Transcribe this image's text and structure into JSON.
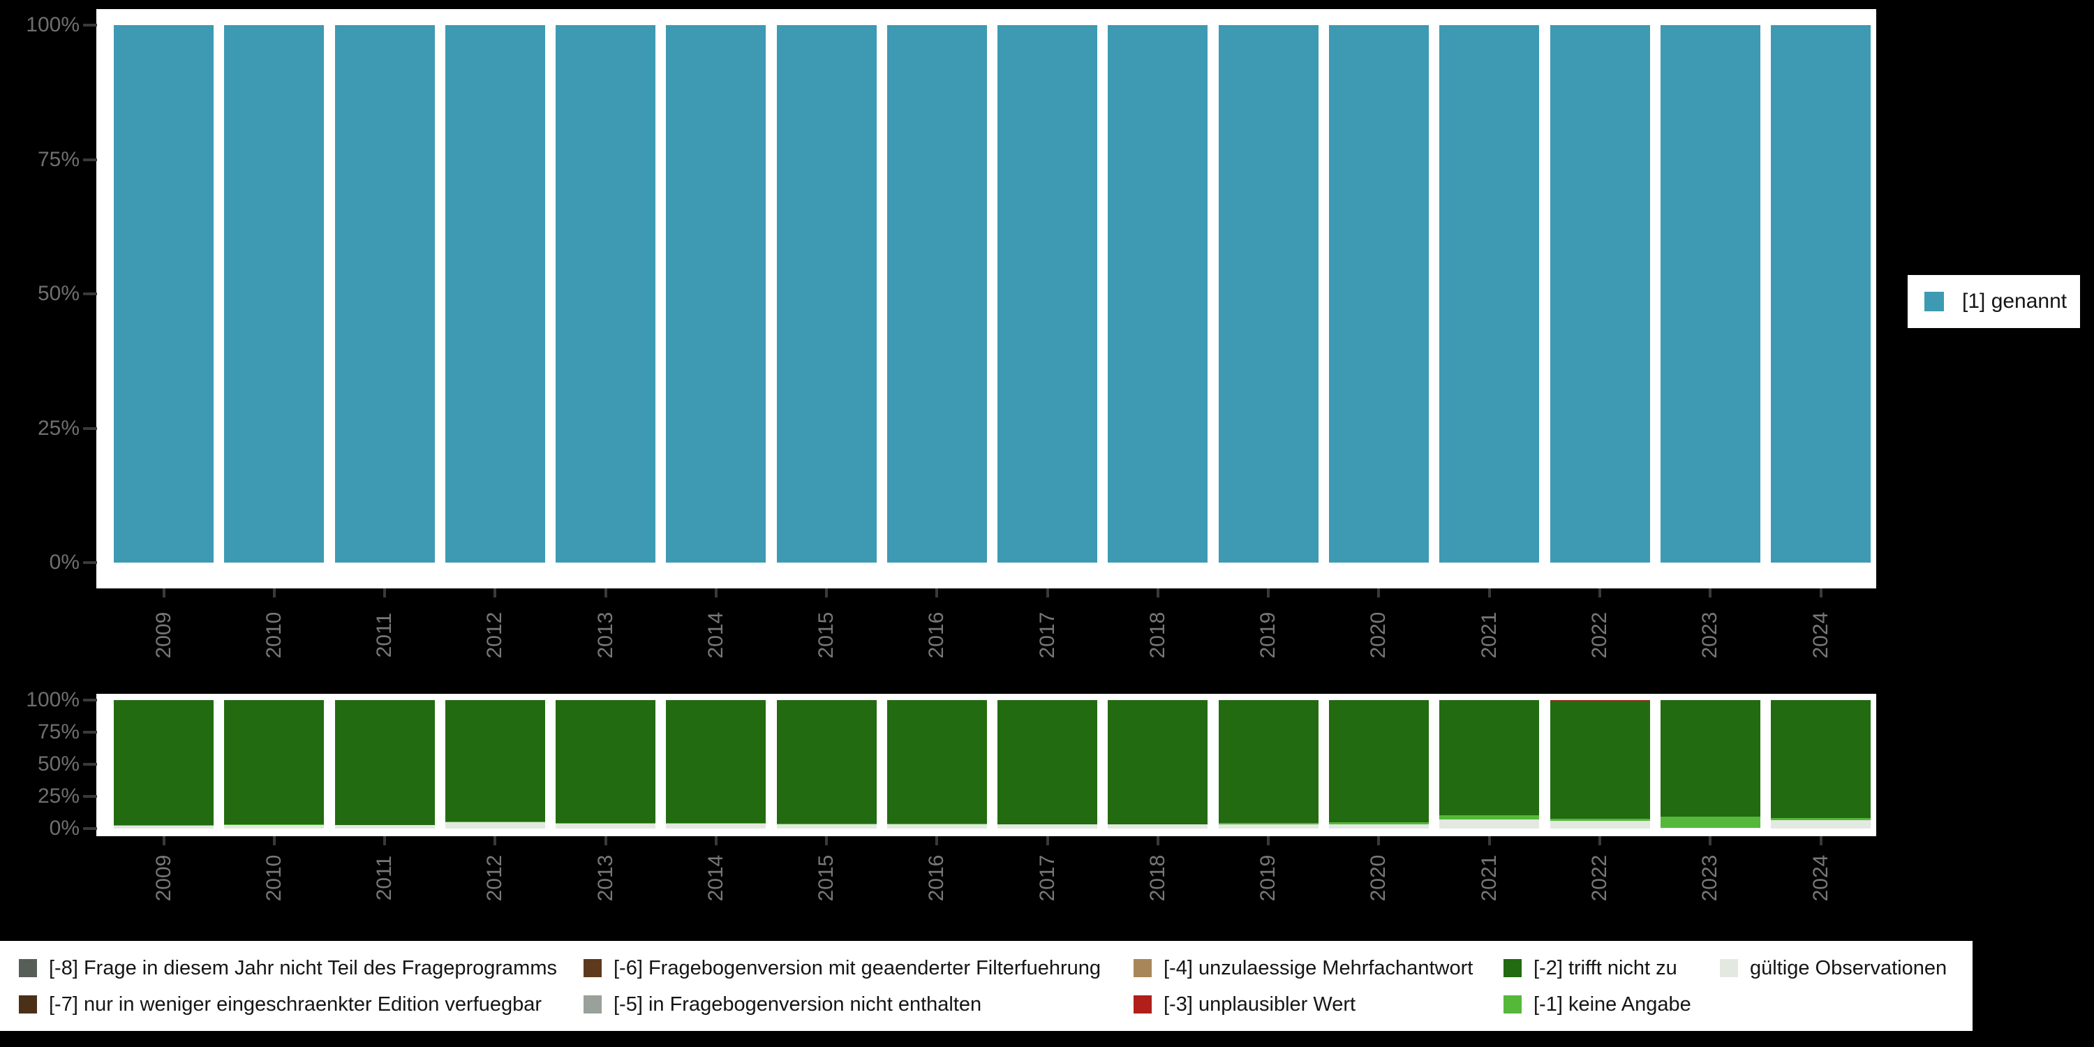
{
  "background_color": "#000000",
  "axis_style": {
    "tick_mark_color": "#3a3a3a",
    "tick_label_color": "#6f6f6f"
  },
  "legend_top": {
    "label": "[1] genannt",
    "color": "#3d9ab2"
  },
  "chart_data": [
    {
      "type": "bar",
      "stacked": true,
      "title": "",
      "xlabel": "",
      "ylabel": "",
      "ylim": [
        0,
        100
      ],
      "grid": false,
      "legend_position": "right",
      "y_tick_labels": [
        "100%",
        "75%",
        "50%",
        "25%",
        "0%"
      ],
      "categories": [
        "2009",
        "2010",
        "2011",
        "2012",
        "2013",
        "2014",
        "2015",
        "2016",
        "2017",
        "2018",
        "2019",
        "2020",
        "2021",
        "2022",
        "2023",
        "2024"
      ],
      "series": [
        {
          "name": "[1] genannt",
          "color": "#3d9ab2",
          "values": [
            100,
            100,
            100,
            100,
            100,
            100,
            100,
            100,
            100,
            100,
            100,
            100,
            100,
            100,
            100,
            100
          ]
        }
      ]
    },
    {
      "type": "bar",
      "stacked": true,
      "title": "",
      "xlabel": "",
      "ylabel": "",
      "ylim": [
        0,
        100
      ],
      "grid": false,
      "legend_position": "bottom",
      "y_tick_labels": [
        "100%",
        "75%",
        "50%",
        "25%",
        "0%"
      ],
      "categories": [
        "2009",
        "2010",
        "2011",
        "2012",
        "2013",
        "2014",
        "2015",
        "2016",
        "2017",
        "2018",
        "2019",
        "2020",
        "2021",
        "2022",
        "2023",
        "2024"
      ],
      "series": [
        {
          "name": "gültige Observationen",
          "color": "#e3e8e1",
          "values": [
            2,
            2.5,
            2.5,
            5,
            4,
            4,
            3.5,
            3.5,
            3,
            3,
            3.5,
            3,
            7,
            6,
            0.5,
            6.5
          ]
        },
        {
          "name": "[-1] keine Angabe",
          "color": "#55b83b",
          "values": [
            0.5,
            1,
            0.5,
            0.5,
            0.5,
            0.5,
            0.5,
            0.5,
            0.5,
            0.5,
            1,
            2,
            3.5,
            1.5,
            8.5,
            1.5
          ]
        },
        {
          "name": "[-2] trifft nicht zu",
          "color": "#226b11",
          "values": [
            97.5,
            96.5,
            97,
            94.5,
            95.5,
            95.5,
            96,
            96,
            96.5,
            96.5,
            95.5,
            95,
            89.5,
            92,
            91,
            92
          ]
        },
        {
          "name": "[-3] unplausibler Wert",
          "color": "#b01f1a",
          "values": [
            0,
            0,
            0,
            0,
            0,
            0,
            0,
            0,
            0,
            0,
            0,
            0,
            0,
            0.5,
            0,
            0
          ]
        }
      ]
    }
  ],
  "legend_bottom": {
    "items": [
      {
        "label": "[-8] Frage in diesem Jahr nicht Teil des Frageprogramms",
        "color": "#575e57",
        "col": 0,
        "row": 0
      },
      {
        "label": "[-7] nur in weniger eingeschraenkter Edition verfuegbar",
        "color": "#4b3018",
        "col": 0,
        "row": 1
      },
      {
        "label": "[-6] Fragebogenversion mit geaenderter Filterfuehrung",
        "color": "#5d3a1e",
        "col": 1,
        "row": 0
      },
      {
        "label": "[-5] in Fragebogenversion nicht enthalten",
        "color": "#9aa09a",
        "col": 1,
        "row": 1
      },
      {
        "label": "[-4] unzulaessige Mehrfachantwort",
        "color": "#a8865a",
        "col": 2,
        "row": 0
      },
      {
        "label": "[-3] unplausibler Wert",
        "color": "#b01f1a",
        "col": 2,
        "row": 1
      },
      {
        "label": "[-2] trifft nicht zu",
        "color": "#226b11",
        "col": 3,
        "row": 0
      },
      {
        "label": "[-1] keine Angabe",
        "color": "#55b83b",
        "col": 3,
        "row": 1
      },
      {
        "label": "gültige Observationen",
        "color": "#e3e8e1",
        "col": 4,
        "row": 0
      }
    ]
  }
}
